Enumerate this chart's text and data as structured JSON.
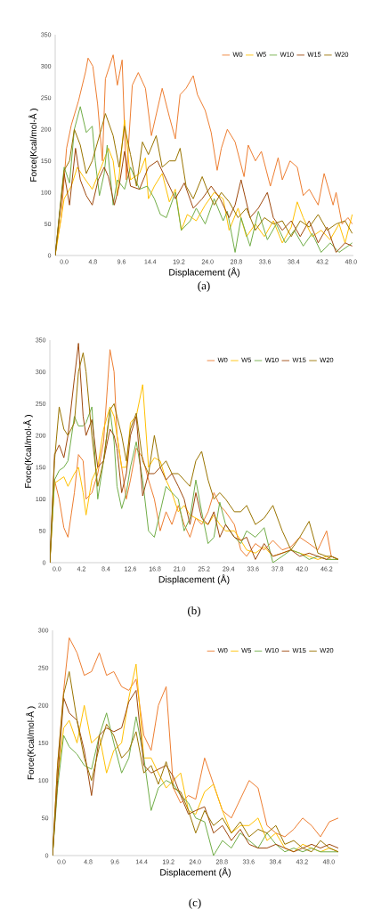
{
  "chart_data": [
    {
      "type": "line",
      "xlabel": "Displacement (Å)",
      "ylabel": "Force(Kcal/mol-Å )",
      "annotations": [
        "(a)"
      ],
      "legend": "top right",
      "xlim": [
        -1.5,
        48.4
      ],
      "ylim": [
        0,
        350
      ],
      "xticks": [
        {
          "value": 0,
          "label": "0.0"
        },
        {
          "value": 4.8,
          "label": "4.8"
        },
        {
          "value": 9.6,
          "label": "9.6"
        },
        {
          "value": 14.4,
          "label": "14.4"
        },
        {
          "value": 19.2,
          "label": "19.2"
        },
        {
          "value": 24,
          "label": "24.0"
        },
        {
          "value": 28.8,
          "label": "28.8"
        },
        {
          "value": 33.6,
          "label": "33.6"
        },
        {
          "value": 38.4,
          "label": "38.4"
        },
        {
          "value": 43.2,
          "label": "43.2"
        },
        {
          "value": 48,
          "label": "48.0"
        }
      ],
      "yticks": [
        0,
        50,
        100,
        150,
        200,
        250,
        300,
        350
      ],
      "series": [
        {
          "name": "W0",
          "color": "#ed7d31",
          "x": [
            -1.5,
            -0.5,
            0.4,
            1.2,
            2.4,
            3.6,
            4,
            4.8,
            5.6,
            6.4,
            6.9,
            8.2,
            8.9,
            9.7,
            10.4,
            11.4,
            12.4,
            13.6,
            14.6,
            16.4,
            17.6,
            18.6,
            19.4,
            20.4,
            21.6,
            22.3,
            23.6,
            24.6,
            25.6,
            26.3,
            27.3,
            28.6,
            30.1,
            30.8,
            32,
            33,
            34.5,
            35.8,
            36.5,
            37.8,
            39,
            40,
            41,
            42.5,
            43.5,
            45,
            45.5,
            46.5,
            47.5,
            48.2
          ],
          "values": [
            5,
            60,
            170,
            207,
            245,
            292,
            313,
            300,
            240,
            150,
            280,
            318,
            270,
            310,
            120,
            270,
            290,
            265,
            190,
            265,
            220,
            185,
            255,
            265,
            285,
            255,
            230,
            195,
            135,
            170,
            200,
            180,
            125,
            175,
            150,
            165,
            110,
            155,
            120,
            150,
            140,
            95,
            105,
            80,
            130,
            80,
            100,
            50,
            60,
            50
          ]
        },
        {
          "name": "W5",
          "color": "#ffc000",
          "x": [
            -1.5,
            0,
            1.2,
            2.2,
            3.2,
            4.7,
            6.2,
            7.4,
            8.2,
            8.9,
            10.1,
            11.1,
            12.6,
            13.6,
            14.1,
            15.1,
            16.4,
            17.6,
            18.6,
            19.6,
            20.6,
            22.1,
            23.6,
            25.1,
            26.6,
            27.6,
            29.1,
            30.5,
            32,
            33.5,
            35,
            36.5,
            38,
            39,
            40,
            41.5,
            43,
            44.5,
            46,
            47,
            48.2
          ],
          "values": [
            0,
            90,
            110,
            140,
            125,
            105,
            140,
            170,
            150,
            95,
            215,
            120,
            130,
            155,
            90,
            110,
            130,
            85,
            105,
            40,
            65,
            55,
            80,
            100,
            90,
            40,
            75,
            30,
            50,
            30,
            55,
            20,
            45,
            85,
            60,
            30,
            40,
            25,
            50,
            20,
            65
          ]
        },
        {
          "name": "W10",
          "color": "#70ad47",
          "x": [
            -1.5,
            0,
            0.9,
            1.7,
            2.7,
            3.7,
            4.7,
            5.2,
            5.9,
            6.7,
            7.2,
            8.2,
            8.9,
            10.1,
            11.1,
            12.6,
            13.9,
            15.1,
            16.1,
            17.1,
            18.6,
            19.6,
            21.1,
            22.1,
            23.6,
            25.1,
            26.6,
            27.3,
            28.6,
            29.6,
            31.1,
            32.5,
            34,
            35.5,
            37,
            38.5,
            40,
            41.5,
            43,
            44.5,
            46,
            47.5,
            48.2
          ],
          "values": [
            0,
            140,
            115,
            200,
            236,
            195,
            205,
            150,
            95,
            130,
            175,
            80,
            120,
            105,
            140,
            105,
            110,
            90,
            65,
            60,
            100,
            40,
            55,
            75,
            50,
            90,
            55,
            70,
            5,
            60,
            15,
            70,
            25,
            50,
            20,
            40,
            15,
            35,
            5,
            20,
            5,
            15,
            20
          ]
        },
        {
          "name": "W15",
          "color": "#9e480e",
          "x": [
            -1.5,
            0,
            0.9,
            1.9,
            2.7,
            3.7,
            4.7,
            5.7,
            6.7,
            7.4,
            8.4,
            9.2,
            10.1,
            11.1,
            12.6,
            14.1,
            15.6,
            17.1,
            18.6,
            20.1,
            21.6,
            23.1,
            24.6,
            26.1,
            27.6,
            28.6,
            29.6,
            31.1,
            32.5,
            34,
            35,
            36.5,
            38,
            39.5,
            41,
            42.5,
            44,
            45.5,
            47,
            48.2
          ],
          "values": [
            0,
            130,
            80,
            170,
            120,
            95,
            80,
            120,
            140,
            125,
            80,
            110,
            165,
            110,
            105,
            140,
            150,
            120,
            90,
            115,
            75,
            90,
            110,
            90,
            60,
            80,
            120,
            60,
            75,
            100,
            60,
            40,
            55,
            30,
            55,
            20,
            45,
            5,
            20,
            15
          ]
        },
        {
          "name": "W20",
          "color": "#997300",
          "x": [
            -1.5,
            0,
            0.9,
            1.7,
            2.7,
            3.7,
            4.7,
            6.2,
            6.9,
            8.2,
            9.2,
            10.1,
            11.1,
            12.1,
            13.1,
            14.1,
            15.4,
            16.4,
            17.6,
            18.6,
            19.4,
            20.4,
            21.6,
            23.1,
            24.1,
            25.1,
            26.3,
            27.6,
            29.1,
            30.5,
            32,
            33.5,
            35,
            36.5,
            38,
            39.5,
            41,
            42.5,
            44,
            45.5,
            47,
            48.2
          ],
          "values": [
            0,
            135,
            150,
            200,
            175,
            130,
            150,
            200,
            225,
            190,
            140,
            205,
            160,
            110,
            180,
            160,
            190,
            140,
            150,
            150,
            170,
            110,
            90,
            125,
            100,
            80,
            100,
            85,
            60,
            75,
            40,
            60,
            50,
            55,
            30,
            55,
            45,
            65,
            40,
            50,
            55,
            35
          ]
        }
      ]
    },
    {
      "type": "line",
      "xlabel": "Displacement (Å)",
      "ylabel": "Force(Kcal/mol-Å )",
      "annotations": [
        "(b)"
      ],
      "legend": "top right",
      "xlim": [
        -1.2,
        48.2
      ],
      "ylim": [
        0,
        350
      ],
      "xticks": [
        {
          "value": 0,
          "label": "0.0"
        },
        {
          "value": 4.2,
          "label": "4.2"
        },
        {
          "value": 8.4,
          "label": "8.4"
        },
        {
          "value": 12.6,
          "label": "12.6"
        },
        {
          "value": 16.8,
          "label": "16.8"
        },
        {
          "value": 21,
          "label": "21.0"
        },
        {
          "value": 25.2,
          "label": "25.2"
        },
        {
          "value": 29.4,
          "label": "29.4"
        },
        {
          "value": 33.6,
          "label": "33.6"
        },
        {
          "value": 37.8,
          "label": "37.8"
        },
        {
          "value": 42,
          "label": "42.0"
        },
        {
          "value": 46.2,
          "label": "46.2"
        }
      ],
      "yticks": [
        0,
        50,
        100,
        150,
        200,
        250,
        300,
        350
      ],
      "series": [
        {
          "name": "W0",
          "color": "#ed7d31",
          "x": [
            -1.2,
            -0.4,
            0.4,
            1.2,
            1.9,
            3.0,
            3.7,
            4.5,
            5.0,
            6.0,
            7.0,
            8.0,
            9.1,
            9.8,
            10.3,
            11.1,
            11.9,
            12.6,
            13.6,
            14.7,
            15.7,
            16.7,
            17.7,
            18.7,
            19.7,
            20.8,
            21.8,
            22.8,
            23.8,
            24.8,
            25.9,
            26.9,
            27.9,
            28.9,
            30.4,
            31.5,
            32.5,
            34.0,
            35.5,
            37.0,
            38.6,
            40.1,
            41.6,
            43.2,
            44.7,
            46.2,
            47.0,
            48.2
          ],
          "values": [
            0,
            130,
            100,
            55,
            40,
            110,
            170,
            160,
            100,
            110,
            140,
            190,
            335,
            300,
            200,
            150,
            100,
            130,
            180,
            165,
            130,
            100,
            50,
            80,
            60,
            90,
            60,
            40,
            70,
            60,
            80,
            110,
            90,
            80,
            60,
            20,
            10,
            30,
            20,
            35,
            20,
            25,
            40,
            30,
            20,
            50,
            10,
            5
          ]
        },
        {
          "name": "W5",
          "color": "#ffc000",
          "x": [
            -1.2,
            -0.4,
            0.4,
            1.2,
            1.9,
            3.0,
            3.7,
            4.5,
            5.0,
            6.0,
            7.0,
            8.0,
            9.1,
            9.8,
            10.3,
            11.1,
            11.9,
            12.6,
            13.6,
            14.7,
            15.7,
            16.7,
            17.7,
            18.7,
            19.7,
            20.8,
            21.8,
            22.8,
            23.8,
            24.8,
            25.9,
            26.9,
            27.9,
            28.9,
            30.4,
            31.5,
            32.5,
            34.0,
            35.5,
            37.0,
            38.6,
            40.1,
            41.6,
            43.2,
            44.7,
            46.2,
            47.0,
            48.2
          ],
          "values": [
            0,
            125,
            130,
            135,
            120,
            140,
            150,
            110,
            75,
            130,
            150,
            210,
            245,
            230,
            200,
            150,
            150,
            220,
            230,
            280,
            150,
            165,
            160,
            130,
            110,
            80,
            90,
            75,
            70,
            65,
            60,
            75,
            60,
            50,
            50,
            35,
            20,
            15,
            25,
            10,
            15,
            20,
            15,
            10,
            5,
            10,
            5,
            5
          ]
        },
        {
          "name": "W10",
          "color": "#70ad47",
          "x": [
            -1.2,
            -0.4,
            0.4,
            1.2,
            1.9,
            3.0,
            3.7,
            4.5,
            5.0,
            6.0,
            7.0,
            8.0,
            9.1,
            9.8,
            10.3,
            11.1,
            11.9,
            12.6,
            13.6,
            14.7,
            15.7,
            16.7,
            17.7,
            18.7,
            19.7,
            20.8,
            21.8,
            22.8,
            23.8,
            24.8,
            25.9,
            26.9,
            27.9,
            28.9,
            30.4,
            31.5,
            32.5,
            34.0,
            35.5,
            37.0,
            38.6,
            40.1,
            41.6,
            43.2,
            44.7,
            46.2,
            47.0,
            48.2
          ],
          "values": [
            0,
            130,
            145,
            150,
            160,
            230,
            215,
            215,
            220,
            245,
            100,
            160,
            240,
            190,
            120,
            85,
            110,
            150,
            190,
            130,
            50,
            40,
            80,
            120,
            110,
            100,
            50,
            70,
            130,
            80,
            30,
            40,
            95,
            60,
            40,
            30,
            50,
            40,
            55,
            0,
            10,
            20,
            15,
            5,
            10,
            5,
            5,
            5
          ]
        },
        {
          "name": "W15",
          "color": "#9e480e",
          "x": [
            -1.2,
            -0.4,
            0.4,
            1.2,
            1.9,
            3.0,
            3.7,
            4.5,
            5.0,
            6.0,
            7.0,
            8.0,
            9.1,
            9.8,
            10.3,
            11.1,
            11.9,
            12.6,
            13.6,
            14.7,
            15.7,
            16.7,
            17.7,
            18.7,
            19.7,
            20.8,
            21.8,
            22.8,
            23.8,
            24.8,
            25.9,
            26.9,
            27.9,
            28.9,
            30.4,
            31.5,
            32.5,
            34.0,
            35.5,
            37.0,
            38.6,
            40.1,
            41.6,
            43.2,
            44.7,
            46.2,
            47.0,
            48.2
          ],
          "values": [
            0,
            170,
            185,
            165,
            200,
            290,
            345,
            230,
            200,
            225,
            150,
            160,
            210,
            200,
            180,
            110,
            140,
            200,
            230,
            105,
            140,
            140,
            150,
            130,
            140,
            120,
            100,
            60,
            110,
            70,
            60,
            80,
            40,
            60,
            40,
            35,
            40,
            5,
            30,
            10,
            15,
            20,
            10,
            15,
            10,
            5,
            10,
            5
          ]
        },
        {
          "name": "W20",
          "color": "#997300",
          "x": [
            -1.2,
            -0.4,
            0.4,
            1.2,
            1.9,
            3.0,
            3.7,
            4.5,
            5.0,
            6.0,
            7.0,
            8.0,
            9.1,
            9.8,
            10.3,
            11.1,
            11.9,
            12.6,
            13.6,
            14.7,
            15.7,
            16.7,
            17.7,
            18.7,
            19.7,
            20.8,
            21.8,
            22.8,
            23.8,
            24.8,
            25.9,
            26.9,
            27.9,
            28.9,
            30.4,
            31.5,
            32.5,
            34.0,
            35.5,
            37.0,
            38.6,
            40.1,
            41.6,
            43.2,
            44.7,
            46.2,
            47.0,
            48.2
          ],
          "values": [
            0,
            160,
            245,
            210,
            200,
            220,
            300,
            330,
            300,
            200,
            120,
            160,
            240,
            250,
            230,
            200,
            160,
            210,
            235,
            160,
            140,
            200,
            150,
            160,
            140,
            140,
            130,
            120,
            160,
            175,
            130,
            100,
            110,
            100,
            80,
            80,
            90,
            60,
            70,
            90,
            50,
            20,
            40,
            65,
            15,
            10,
            10,
            5
          ]
        }
      ]
    },
    {
      "type": "line",
      "xlabel": "Displacement (Å)",
      "ylabel": "Force(Kcal/mol-Å )",
      "annotations": [
        "(c)"
      ],
      "legend": "top right",
      "xlim": [
        -1.6,
        49.7
      ],
      "ylim": [
        0,
        300
      ],
      "xticks": [
        {
          "value": 0,
          "label": "0.0"
        },
        {
          "value": 4.8,
          "label": "4.8"
        },
        {
          "value": 9.6,
          "label": "9.6"
        },
        {
          "value": 14.4,
          "label": "14.4"
        },
        {
          "value": 19.2,
          "label": "19.2"
        },
        {
          "value": 24,
          "label": "24.0"
        },
        {
          "value": 28.8,
          "label": "28.8"
        },
        {
          "value": 33.6,
          "label": "33.6"
        },
        {
          "value": 38.4,
          "label": "38.4"
        },
        {
          "value": 43.2,
          "label": "43.2"
        },
        {
          "value": 48,
          "label": "48.0"
        }
      ],
      "yticks": [
        0,
        50,
        100,
        150,
        200,
        250,
        300
      ],
      "series": [
        {
          "name": "W0",
          "color": "#ed7d31",
          "x": [
            -1.6,
            -0.7,
            0.4,
            1.4,
            2.8,
            4.1,
            5.4,
            6.8,
            8.1,
            9.4,
            10.8,
            12.1,
            13.4,
            14.8,
            16.1,
            17.4,
            18.8,
            20.1,
            21.4,
            22.8,
            24.1,
            25.7,
            27.3,
            28.9,
            30.5,
            32.1,
            33.7,
            35.3,
            36.9,
            38.5,
            40.1,
            41.7,
            43.3,
            44.9,
            46.5,
            48.1,
            49.7
          ],
          "values": [
            0,
            120,
            220,
            290,
            270,
            240,
            245,
            270,
            240,
            245,
            225,
            220,
            235,
            160,
            140,
            200,
            225,
            90,
            70,
            80,
            75,
            130,
            95,
            60,
            50,
            75,
            100,
            90,
            40,
            30,
            25,
            35,
            50,
            40,
            25,
            45,
            50
          ]
        },
        {
          "name": "W5",
          "color": "#ffc000",
          "x": [
            -1.6,
            -0.7,
            0.4,
            1.4,
            2.8,
            4.1,
            5.4,
            6.8,
            8.1,
            9.4,
            10.8,
            12.1,
            13.4,
            14.8,
            16.1,
            17.4,
            18.8,
            20.1,
            21.4,
            22.8,
            24.1,
            25.7,
            27.3,
            28.9,
            30.5,
            32.1,
            33.7,
            35.3,
            36.9,
            38.5,
            40.1,
            41.7,
            43.3,
            44.9,
            46.5,
            48.1,
            49.7
          ],
          "values": [
            0,
            100,
            170,
            180,
            150,
            200,
            150,
            160,
            110,
            140,
            150,
            210,
            255,
            130,
            130,
            110,
            90,
            100,
            110,
            60,
            55,
            85,
            95,
            60,
            30,
            40,
            40,
            50,
            20,
            30,
            10,
            5,
            15,
            10,
            5,
            10,
            5
          ]
        },
        {
          "name": "W10",
          "color": "#70ad47",
          "x": [
            -1.6,
            -0.7,
            0.4,
            1.4,
            2.8,
            4.1,
            5.4,
            6.8,
            8.1,
            9.4,
            10.8,
            12.1,
            13.4,
            14.8,
            16.1,
            17.4,
            18.8,
            20.1,
            21.4,
            22.8,
            24.1,
            25.7,
            27.3,
            28.9,
            30.5,
            32.1,
            33.7,
            35.3,
            36.9,
            38.5,
            40.1,
            41.7,
            43.3,
            44.9,
            46.5,
            48.1,
            49.7
          ],
          "values": [
            0,
            90,
            160,
            145,
            135,
            120,
            115,
            160,
            190,
            150,
            110,
            130,
            185,
            130,
            60,
            90,
            100,
            95,
            80,
            70,
            50,
            45,
            0,
            20,
            10,
            30,
            20,
            10,
            30,
            15,
            5,
            10,
            5,
            10,
            5,
            5,
            5
          ]
        },
        {
          "name": "W15",
          "color": "#9e480e",
          "x": [
            -1.6,
            -0.7,
            0.4,
            1.4,
            2.8,
            4.1,
            5.4,
            6.8,
            8.1,
            9.4,
            10.8,
            12.1,
            13.4,
            14.8,
            16.1,
            17.4,
            18.8,
            20.1,
            21.4,
            22.8,
            24.1,
            25.7,
            27.3,
            28.9,
            30.5,
            32.1,
            33.7,
            35.3,
            36.9,
            38.5,
            40.1,
            41.7,
            43.3,
            44.9,
            46.5,
            48.1,
            49.7
          ],
          "values": [
            0,
            100,
            210,
            190,
            180,
            140,
            80,
            160,
            170,
            165,
            170,
            205,
            220,
            120,
            110,
            115,
            120,
            105,
            80,
            55,
            60,
            65,
            30,
            40,
            20,
            35,
            15,
            10,
            10,
            15,
            10,
            5,
            10,
            15,
            10,
            15,
            10
          ]
        },
        {
          "name": "W20",
          "color": "#997300",
          "x": [
            -1.6,
            -0.7,
            0.4,
            1.4,
            2.8,
            4.1,
            5.4,
            6.8,
            8.1,
            9.4,
            10.8,
            12.1,
            13.4,
            14.8,
            16.1,
            17.4,
            18.8,
            20.1,
            21.4,
            22.8,
            24.1,
            25.7,
            27.3,
            28.9,
            30.5,
            32.1,
            33.7,
            35.3,
            36.9,
            38.5,
            40.1,
            41.7,
            43.3,
            44.9,
            46.5,
            48.1,
            49.7
          ],
          "values": [
            0,
            120,
            215,
            245,
            180,
            130,
            100,
            145,
            175,
            160,
            130,
            140,
            165,
            110,
            120,
            95,
            125,
            90,
            85,
            60,
            30,
            60,
            40,
            50,
            30,
            45,
            25,
            35,
            30,
            40,
            15,
            20,
            10,
            5,
            20,
            10,
            5
          ]
        }
      ]
    }
  ]
}
